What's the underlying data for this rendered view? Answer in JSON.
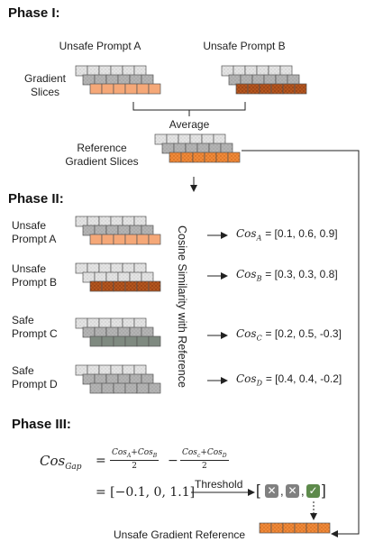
{
  "phase1": {
    "title": "Phase I:",
    "prompt_a": "Unsafe Prompt A",
    "prompt_b": "Unsafe Prompt B",
    "gradient_slices": "Gradient\nSlices",
    "average": "Average",
    "reference": "Reference\nGradient Slices"
  },
  "phase2": {
    "title": "Phase II:",
    "vertical_label": "Cosine Similarity with Reference",
    "rows": [
      {
        "label": "Unsafe\nPrompt A",
        "cos_base": "Cos",
        "cos_sub": "A",
        "vector": "= [0.1, 0.6, 0.9]"
      },
      {
        "label": "Unsafe\nPrompt B",
        "cos_base": "Cos",
        "cos_sub": "B",
        "vector": "= [0.3, 0.3, 0.8]"
      },
      {
        "label": "Safe\nPrompt C",
        "cos_base": "Cos",
        "cos_sub": "C",
        "vector": "= [0.2, 0.5, -0.3]"
      },
      {
        "label": "Safe\nPrompt D",
        "cos_base": "Cos",
        "cos_sub": "D",
        "vector": "= [0.4, 0.4, -0.2]"
      }
    ]
  },
  "phase3": {
    "title": "Phase III:",
    "cos_gap": "Cos",
    "cos_gap_sub": "Gap",
    "equals": "=",
    "minus": "−",
    "frac1_num_a": "Cos",
    "frac1_sub_a": "A",
    "plus": "+",
    "frac1_num_b": "Cos",
    "frac1_sub_b": "B",
    "frac2_num_a": "Cos",
    "frac2_sub_a": "c",
    "frac2_num_b": "Cos",
    "frac2_sub_b": "D",
    "denominator": "2",
    "result": "= [−0.1, 0, 1.1]",
    "threshold": "Threshold",
    "bracket_open": "[",
    "bracket_close": "]",
    "commas": ",",
    "cross_symbol": "✕",
    "check_symbol": "✓",
    "unsafe_reference": "Unsafe Gradient Reference"
  },
  "colors": {
    "light": "#e6e6e6",
    "mid": "#b5b5b5",
    "dark_gray": "#7f8a80",
    "salmon": "#f5a878",
    "rust": "#b5531c",
    "orange_ref": "#ef8a3a",
    "gray_box": "#808080",
    "check_green": "#5d8a4b"
  }
}
